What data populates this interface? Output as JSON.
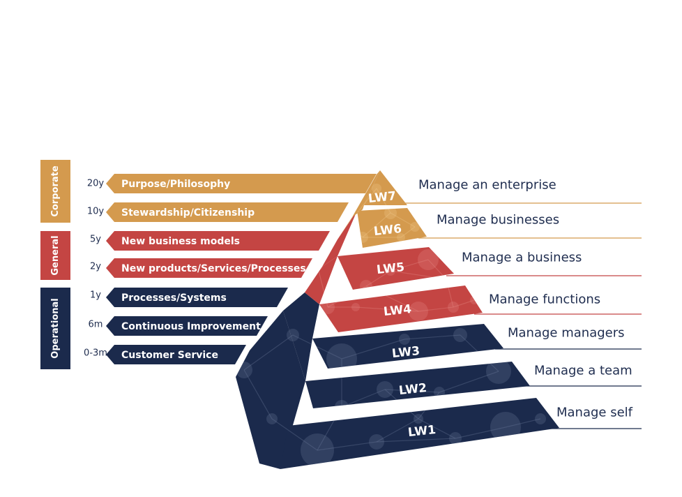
{
  "colors": {
    "corporate": "#d49a4e",
    "general": "#c44543",
    "operational": "#1b2a4c",
    "text": "#1f2d4f",
    "line_corporate": "#d49a4e",
    "line_general": "#c44543",
    "line_operational": "#1b2a4c"
  },
  "tiers": [
    {
      "label": "Corporate",
      "color_key": "corporate"
    },
    {
      "label": "General",
      "color_key": "general"
    },
    {
      "label": "Operational",
      "color_key": "operational"
    }
  ],
  "bars": [
    {
      "time": "20y",
      "label": "Purpose/Philosophy",
      "color_key": "corporate"
    },
    {
      "time": "10y",
      "label": "Stewardship/Citizenship",
      "color_key": "corporate"
    },
    {
      "time": "5y",
      "label": "New business models",
      "color_key": "general"
    },
    {
      "time": "2y",
      "label": "New products/Services/Processes",
      "color_key": "general"
    },
    {
      "time": "1y",
      "label": "Processes/Systems",
      "color_key": "operational"
    },
    {
      "time": "6m",
      "label": "Continuous Improvement",
      "color_key": "operational"
    },
    {
      "time": "0-3m",
      "label": "Customer Service",
      "color_key": "operational"
    }
  ],
  "levels": [
    {
      "code": "LW7",
      "description": "Manage an enterprise",
      "color_key": "corporate"
    },
    {
      "code": "LW6",
      "description": "Manage businesses",
      "color_key": "corporate"
    },
    {
      "code": "LW5",
      "description": "Manage a business",
      "color_key": "general"
    },
    {
      "code": "LW4",
      "description": "Manage functions",
      "color_key": "general"
    },
    {
      "code": "LW3",
      "description": "Manage managers",
      "color_key": "operational"
    },
    {
      "code": "LW2",
      "description": "Manage a team",
      "color_key": "operational"
    },
    {
      "code": "LW1",
      "description": "Manage self",
      "color_key": "operational"
    }
  ]
}
